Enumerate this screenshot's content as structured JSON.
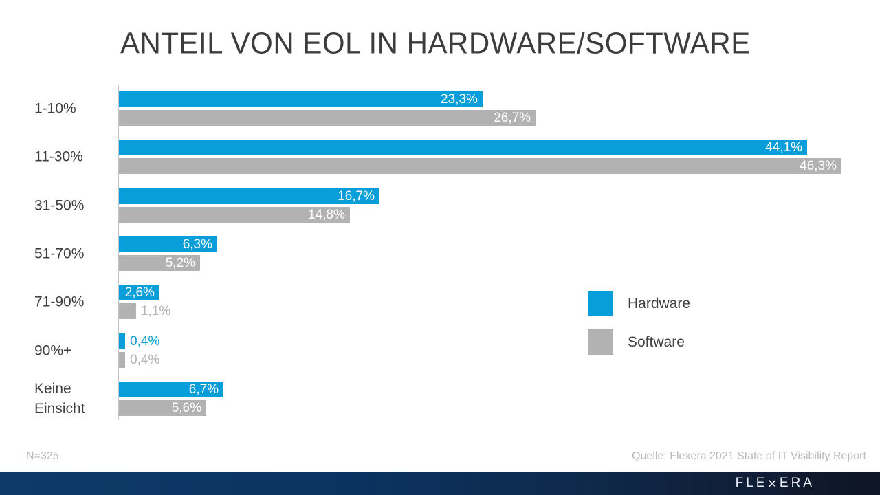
{
  "slide": {
    "title": "ANTEIL VON EOL IN HARDWARE/SOFTWARE",
    "footnote_left": "N=325",
    "footnote_right": "Quelle: Flexera 2021 State of IT Visibility Report",
    "footer_logo_text": "FLEXERA"
  },
  "chart_data": {
    "type": "bar",
    "orientation": "horizontal",
    "title": "ANTEIL VON EOL IN HARDWARE/SOFTWARE",
    "categories": [
      "1-10%",
      "11-30%",
      "31-50%",
      "51-70%",
      "71-90%",
      "90%+",
      "Keine Einsicht"
    ],
    "series": [
      {
        "name": "Hardware",
        "color": "#089ED9",
        "values": [
          23.3,
          44.1,
          16.7,
          6.3,
          2.6,
          0.4,
          6.7
        ],
        "display_labels": [
          "23,3%",
          "44,1%",
          "16,7%",
          "6,3%",
          "2,6%",
          "0,4%",
          "6,7%"
        ]
      },
      {
        "name": "Software",
        "color": "#B2B2B2",
        "values": [
          26.7,
          46.3,
          14.8,
          5.2,
          1.1,
          0.4,
          5.6
        ],
        "display_labels": [
          "26,7%",
          "46,3%",
          "14,8%",
          "5,2%",
          "1,1%",
          "0,4%",
          "5,6%"
        ]
      }
    ],
    "value_label_format": "decimal-comma-percent",
    "axis": {
      "x_min": 0,
      "x_max_of_longest_bar": 46.3,
      "gridlines": false,
      "tick_labels_shown": false
    },
    "legend": {
      "position": "right-middle",
      "entries": [
        "Hardware",
        "Software"
      ]
    },
    "sample_size_note": "N=325",
    "source_note": "Quelle: Flexera 2021 State of IT Visibility Report"
  }
}
